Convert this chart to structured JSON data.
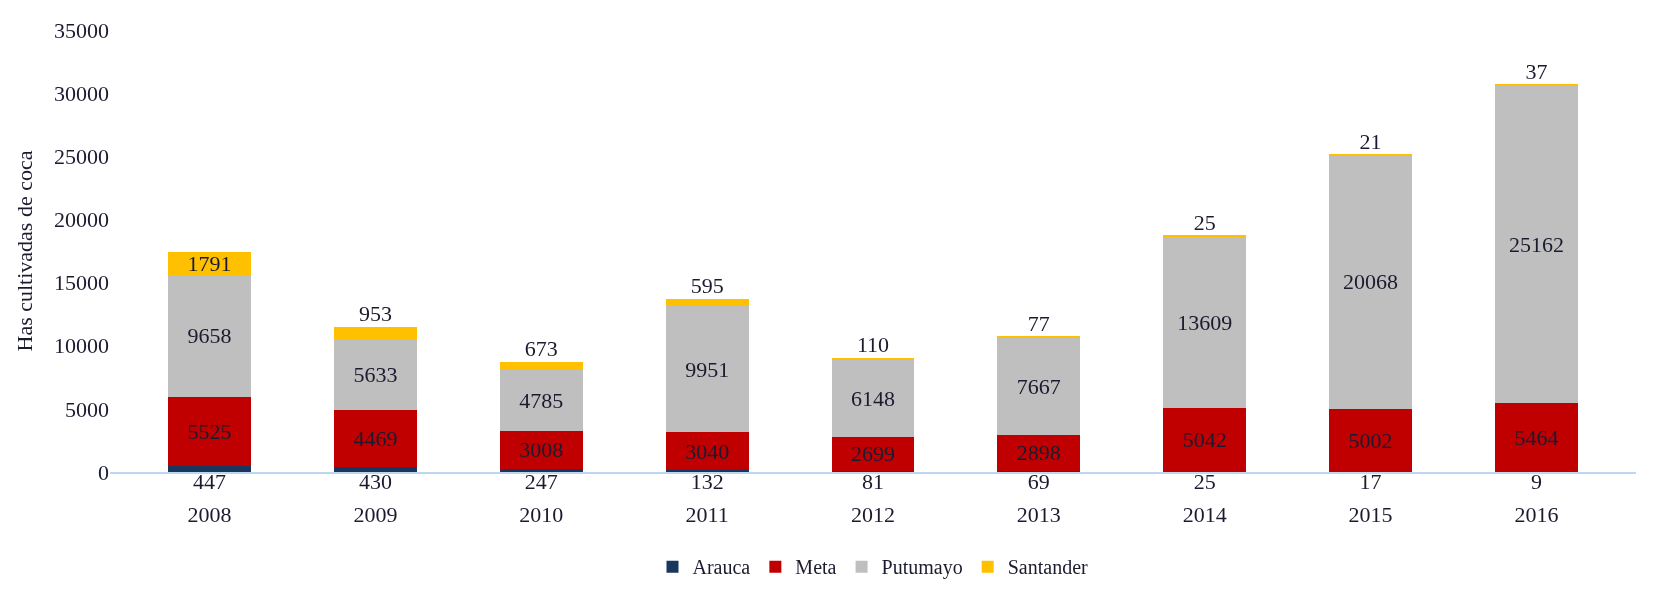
{
  "chart_data": {
    "type": "bar",
    "stacked": true,
    "ylabel": "Has cultivadas de coca",
    "categories": [
      "2008",
      "2009",
      "2010",
      "2011",
      "2012",
      "2013",
      "2014",
      "2015",
      "2016"
    ],
    "series": [
      {
        "name": "Arauca",
        "color": "#17375e",
        "values": [
          447,
          430,
          247,
          132,
          81,
          69,
          25,
          17,
          9
        ]
      },
      {
        "name": "Meta",
        "color": "#c00000",
        "values": [
          5525,
          4469,
          3008,
          3040,
          2699,
          2898,
          5042,
          5002,
          5464
        ]
      },
      {
        "name": "Putumayo",
        "color": "#bfbfbf",
        "values": [
          9658,
          5633,
          4785,
          9951,
          6148,
          7667,
          13609,
          20068,
          25162
        ]
      },
      {
        "name": "Santander",
        "color": "#ffc000",
        "values": [
          1791,
          953,
          673,
          595,
          110,
          77,
          25,
          21,
          37
        ]
      }
    ],
    "ylim": [
      0,
      35000
    ],
    "yticks": [
      0,
      5000,
      10000,
      15000,
      20000,
      25000,
      30000,
      35000
    ],
    "data_labels": true,
    "legend": "bottom"
  }
}
